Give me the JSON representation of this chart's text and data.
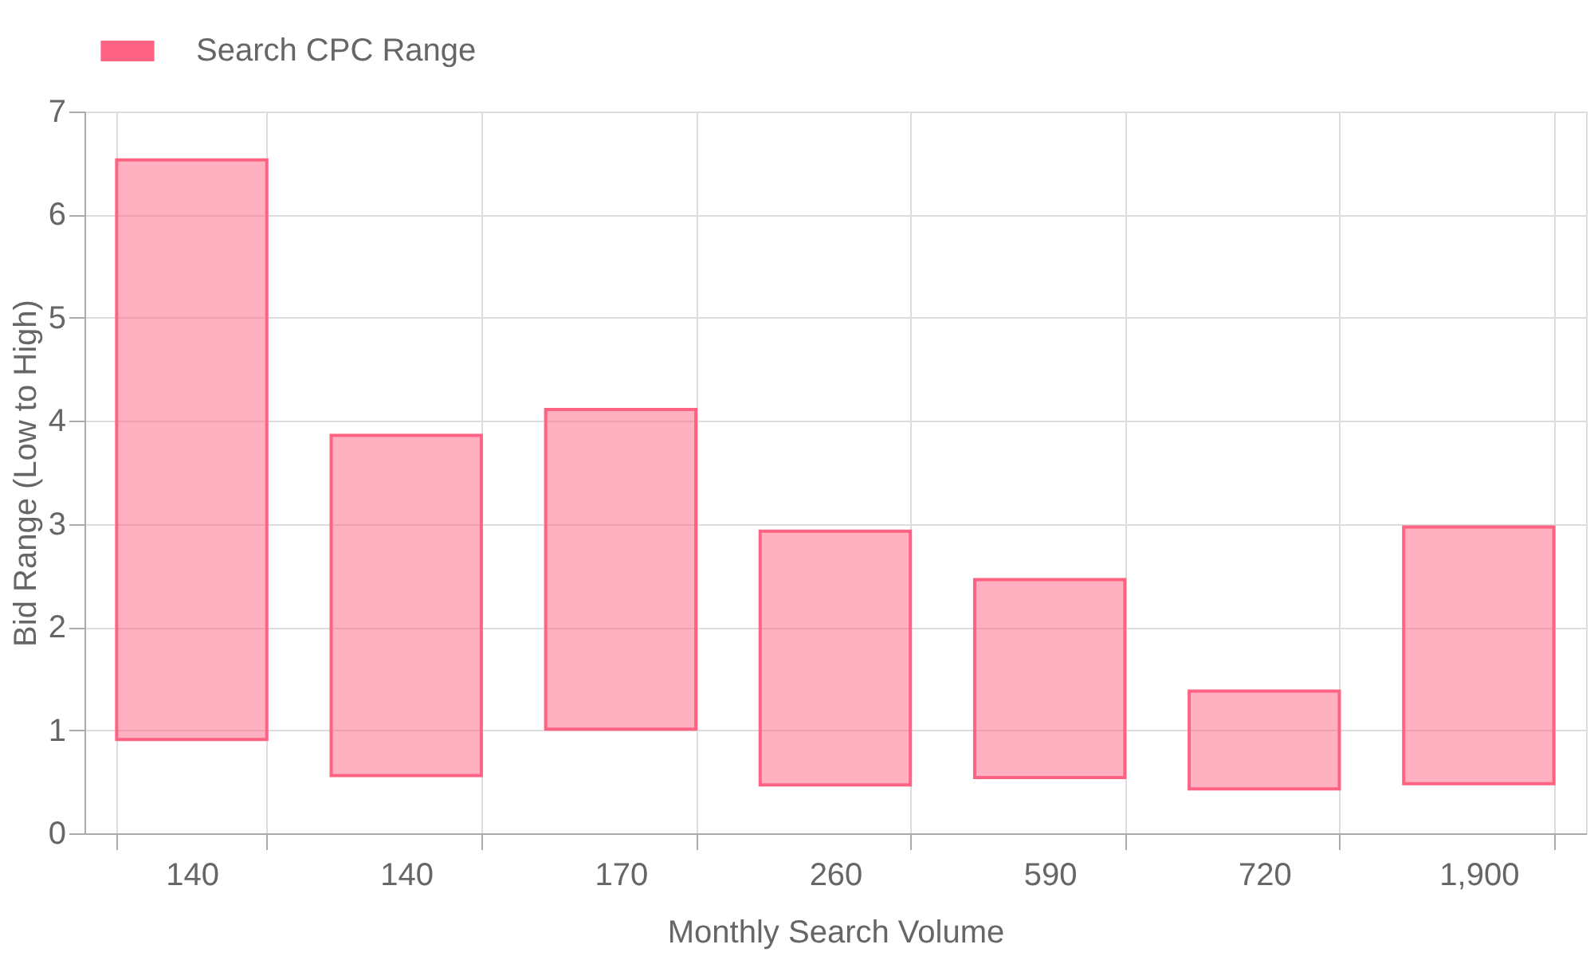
{
  "chart_data": {
    "type": "bar",
    "xlabel": "Monthly Search Volume",
    "ylabel": "Bid Range (Low to High)",
    "categories": [
      "140",
      "140",
      "170",
      "260",
      "590",
      "720",
      "1,900"
    ],
    "series": [
      {
        "name": "Search CPC Range",
        "color": "#ff6384",
        "values": [
          5.62,
          3.3,
          3.1,
          2.46,
          1.92,
          0.95,
          2.49
        ],
        "base": [
          0.91,
          0.56,
          1.01,
          0.47,
          0.54,
          0.43,
          0.48
        ]
      }
    ],
    "ylim": [
      0,
      7
    ],
    "yticks": [
      0,
      1,
      2,
      3,
      4,
      5,
      6,
      7
    ],
    "grid": true,
    "legend": "top"
  }
}
